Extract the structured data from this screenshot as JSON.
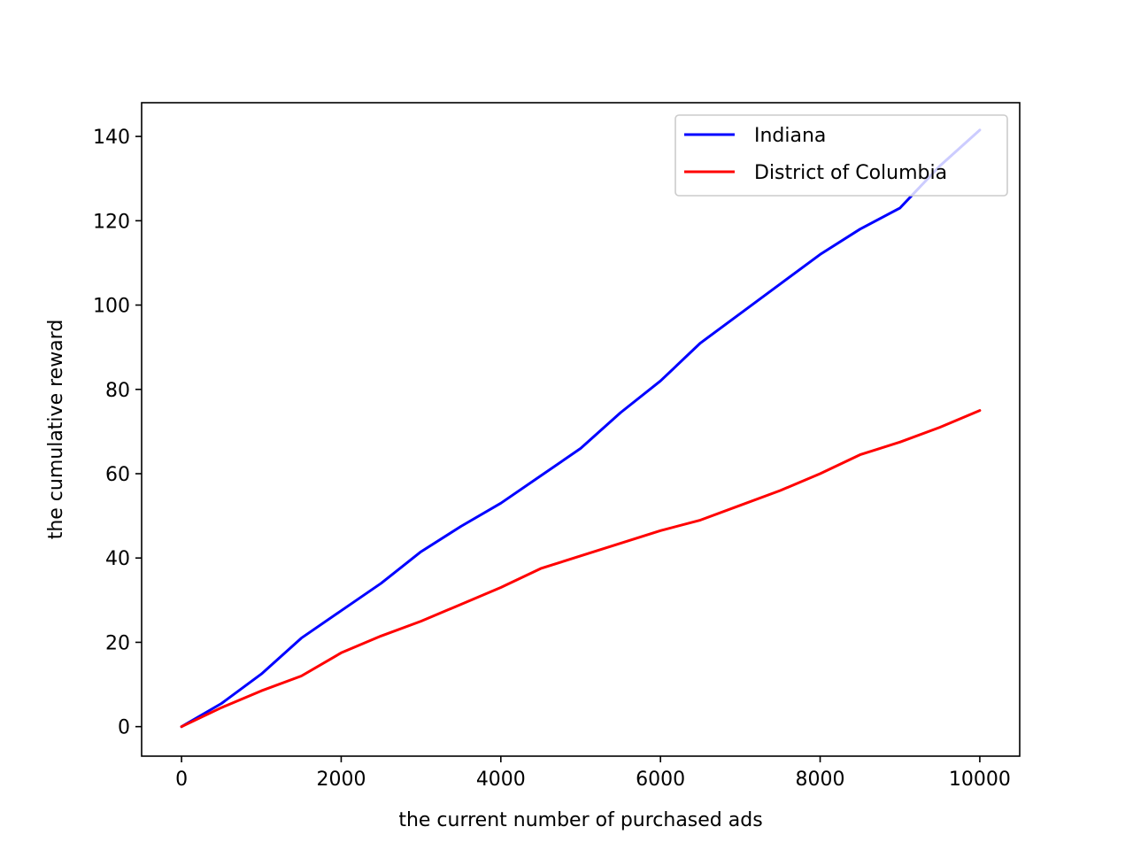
{
  "chart_data": {
    "type": "line",
    "title": "",
    "xlabel": "the current number of purchased ads",
    "ylabel": "the cumulative reward",
    "xlim": [
      -500,
      10500
    ],
    "ylim": [
      -7,
      148
    ],
    "xticks": [
      0,
      2000,
      4000,
      6000,
      8000,
      10000
    ],
    "xtick_labels": [
      "0",
      "2000",
      "4000",
      "6000",
      "8000",
      "10000"
    ],
    "yticks": [
      0,
      20,
      40,
      60,
      80,
      100,
      120,
      140
    ],
    "ytick_labels": [
      "0",
      "20",
      "40",
      "60",
      "80",
      "100",
      "120",
      "140"
    ],
    "grid": false,
    "legend_position": "upper right",
    "series": [
      {
        "name": "Indiana",
        "color": "#0000ff",
        "x": [
          0,
          500,
          1000,
          1500,
          2000,
          2500,
          3000,
          3500,
          4000,
          4500,
          5000,
          5500,
          6000,
          6500,
          7000,
          7500,
          8000,
          8500,
          9000,
          9500,
          10000
        ],
        "y": [
          0,
          5.5,
          12.5,
          21,
          27.5,
          34,
          41.5,
          47.5,
          53,
          59.5,
          66,
          74.5,
          82,
          91,
          98,
          105,
          112,
          118,
          123,
          133,
          141.5
        ]
      },
      {
        "name": "District of Columbia",
        "color": "#ff0000",
        "x": [
          0,
          500,
          1000,
          1500,
          2000,
          2500,
          3000,
          3500,
          4000,
          4500,
          5000,
          5500,
          6000,
          6500,
          7000,
          7500,
          8000,
          8500,
          9000,
          9500,
          10000
        ],
        "y": [
          0,
          4.5,
          8.5,
          12,
          17.5,
          21.5,
          25,
          29,
          33,
          37.5,
          40.5,
          43.5,
          46.5,
          49,
          52.5,
          56,
          60,
          64.5,
          67.5,
          71,
          75
        ]
      }
    ]
  }
}
